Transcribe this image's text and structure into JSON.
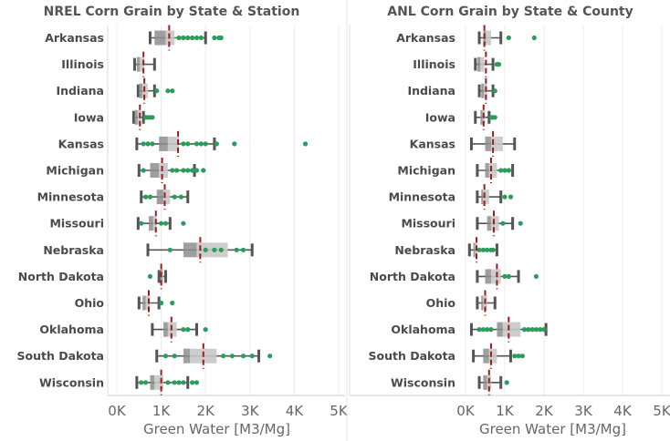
{
  "chart_data": [
    {
      "type": "box",
      "title": "NREL Corn Grain by State & Station",
      "xlabel": "Green Water [M3/Mg]",
      "xlim": [
        0,
        5000
      ],
      "xticks": [
        "0K",
        "1K",
        "2K",
        "3K",
        "4K",
        "5K"
      ],
      "grid": true,
      "colors": {
        "box_light": "#c8c8c8",
        "box_dark": "#8e8e8e",
        "whisker": "#555555",
        "outlier": "#2a9d5c",
        "median_line": "#9b1c1c"
      },
      "categories": [
        "Arkansas",
        "Illinois",
        "Indiana",
        "Iowa",
        "Kansas",
        "Michigan",
        "Minnesota",
        "Missouri",
        "Nebraska",
        "North Dakota",
        "Ohio",
        "Oklahoma",
        "South Dakota",
        "Wisconsin"
      ],
      "series": [
        {
          "state": "Arkansas",
          "min": 750,
          "q1": 850,
          "median": 1100,
          "q3": 1300,
          "max": 2000,
          "marker": 1180,
          "outliers": [
            1400,
            1500,
            1600,
            1700,
            1800,
            1900,
            2200,
            2300,
            2350
          ]
        },
        {
          "state": "Illinois",
          "min": 400,
          "q1": 450,
          "median": 520,
          "q3": 620,
          "max": 850,
          "marker": 600,
          "outliers": []
        },
        {
          "state": "Indiana",
          "min": 480,
          "q1": 500,
          "median": 580,
          "q3": 700,
          "max": 850,
          "marker": 620,
          "outliers": [
            900,
            1150,
            1250
          ]
        },
        {
          "state": "Iowa",
          "min": 380,
          "q1": 400,
          "median": 470,
          "q3": 550,
          "max": 600,
          "marker": 520,
          "outliers": [
            650,
            700,
            750,
            800
          ]
        },
        {
          "state": "Kansas",
          "min": 450,
          "q1": 950,
          "median": 1150,
          "q3": 1400,
          "max": 2200,
          "marker": 1380,
          "outliers": [
            600,
            700,
            800,
            1500,
            1600,
            1800,
            1900,
            2000,
            2250,
            2650,
            4250
          ]
        },
        {
          "state": "Michigan",
          "min": 500,
          "q1": 750,
          "median": 950,
          "q3": 1150,
          "max": 1750,
          "marker": 1020,
          "outliers": [
            600,
            1250,
            1350,
            1500,
            1600,
            1700,
            1800,
            1950
          ]
        },
        {
          "state": "Minnesota",
          "min": 550,
          "q1": 900,
          "median": 1050,
          "q3": 1200,
          "max": 1600,
          "marker": 1080,
          "outliers": [
            650,
            750,
            1300,
            1450
          ]
        },
        {
          "state": "Missouri",
          "min": 480,
          "q1": 720,
          "median": 820,
          "q3": 900,
          "max": 1200,
          "marker": 880,
          "outliers": [
            550,
            1000,
            1100,
            1500
          ]
        },
        {
          "state": "Nebraska",
          "min": 700,
          "q1": 1500,
          "median": 1800,
          "q3": 2500,
          "max": 3050,
          "marker": 1880,
          "outliers": [
            1200,
            2000,
            2200,
            2350,
            2700,
            2850
          ]
        },
        {
          "state": "North Dakota",
          "min": 950,
          "q1": 980,
          "median": 1020,
          "q3": 1050,
          "max": 1100,
          "marker": 1000,
          "outliers": [
            750
          ]
        },
        {
          "state": "Ohio",
          "min": 500,
          "q1": 580,
          "median": 650,
          "q3": 750,
          "max": 950,
          "marker": 720,
          "outliers": [
            1000,
            1250
          ]
        },
        {
          "state": "Oklahoma",
          "min": 800,
          "q1": 1050,
          "median": 1150,
          "q3": 1350,
          "max": 1800,
          "marker": 1230,
          "outliers": [
            1500,
            1600,
            2000
          ]
        },
        {
          "state": "South Dakota",
          "min": 900,
          "q1": 1500,
          "median": 1650,
          "q3": 2250,
          "max": 3200,
          "marker": 1950,
          "outliers": [
            1100,
            1300,
            2400,
            2600,
            2850,
            3050,
            3450
          ]
        },
        {
          "state": "Wisconsin",
          "min": 450,
          "q1": 750,
          "median": 850,
          "q3": 1050,
          "max": 1600,
          "marker": 1000,
          "outliers": [
            550,
            650,
            1150,
            1300,
            1400,
            1500,
            1700,
            1800
          ]
        }
      ]
    },
    {
      "type": "box",
      "title": "ANL Corn Grain by State & County",
      "xlabel": "Green Water [M3/Mg]",
      "xlim": [
        0,
        5000
      ],
      "xticks": [
        "0K",
        "1K",
        "2K",
        "3K",
        "4K",
        "5K"
      ],
      "grid": true,
      "colors": {
        "box_light": "#c8c8c8",
        "box_dark": "#8e8e8e",
        "whisker": "#555555",
        "outlier": "#2a9d5c",
        "median_line": "#9b1c1c"
      },
      "categories": [
        "Arkansas",
        "Illinois",
        "Indiana",
        "Iowa",
        "Kansas",
        "Michigan",
        "Minnesota",
        "Missouri",
        "Nebraska",
        "North Dakota",
        "Ohio",
        "Oklahoma",
        "South Dakota",
        "Wisconsin"
      ],
      "series": [
        {
          "state": "Arkansas",
          "min": 350,
          "q1": 450,
          "median": 520,
          "q3": 650,
          "max": 900,
          "marker": 480,
          "outliers": [
            1100,
            1750
          ]
        },
        {
          "state": "Illinois",
          "min": 250,
          "q1": 300,
          "median": 380,
          "q3": 480,
          "max": 700,
          "marker": 520,
          "outliers": [
            800,
            850
          ]
        },
        {
          "state": "Indiana",
          "min": 350,
          "q1": 400,
          "median": 470,
          "q3": 550,
          "max": 700,
          "marker": 520,
          "outliers": [
            750
          ]
        },
        {
          "state": "Iowa",
          "min": 250,
          "q1": 380,
          "median": 430,
          "q3": 500,
          "max": 600,
          "marker": 460,
          "outliers": [
            650,
            700,
            750
          ]
        },
        {
          "state": "Kansas",
          "min": 150,
          "q1": 500,
          "median": 650,
          "q3": 950,
          "max": 1250,
          "marker": 700,
          "outliers": []
        },
        {
          "state": "Michigan",
          "min": 300,
          "q1": 500,
          "median": 600,
          "q3": 800,
          "max": 1200,
          "marker": 650,
          "outliers": [
            900,
            1000,
            1100
          ]
        },
        {
          "state": "Minnesota",
          "min": 300,
          "q1": 400,
          "median": 450,
          "q3": 600,
          "max": 900,
          "marker": 480,
          "outliers": [
            1000,
            1150
          ]
        },
        {
          "state": "Missouri",
          "min": 300,
          "q1": 550,
          "median": 650,
          "q3": 850,
          "max": 1200,
          "marker": 720,
          "outliers": [
            950,
            1400
          ]
        },
        {
          "state": "Nebraska",
          "min": 100,
          "q1": 200,
          "median": 250,
          "q3": 300,
          "max": 800,
          "marker": 280,
          "outliers": [
            350,
            450,
            550,
            650,
            700
          ]
        },
        {
          "state": "North Dakota",
          "min": 300,
          "q1": 500,
          "median": 650,
          "q3": 900,
          "max": 1350,
          "marker": 800,
          "outliers": [
            1000,
            1100,
            1800
          ]
        },
        {
          "state": "Ohio",
          "min": 300,
          "q1": 400,
          "median": 450,
          "q3": 550,
          "max": 750,
          "marker": 500,
          "outliers": []
        },
        {
          "state": "Oklahoma",
          "min": 150,
          "q1": 800,
          "median": 950,
          "q3": 1400,
          "max": 2050,
          "marker": 1100,
          "outliers": [
            350,
            450,
            550,
            650,
            1500,
            1600,
            1700,
            1800,
            1900,
            2000
          ]
        },
        {
          "state": "South Dakota",
          "min": 200,
          "q1": 450,
          "median": 600,
          "q3": 800,
          "max": 1150,
          "marker": 650,
          "outliers": [
            1250,
            1350,
            1450
          ]
        },
        {
          "state": "Wisconsin",
          "min": 350,
          "q1": 450,
          "median": 550,
          "q3": 650,
          "max": 900,
          "marker": 600,
          "outliers": [
            1050
          ]
        }
      ]
    }
  ]
}
